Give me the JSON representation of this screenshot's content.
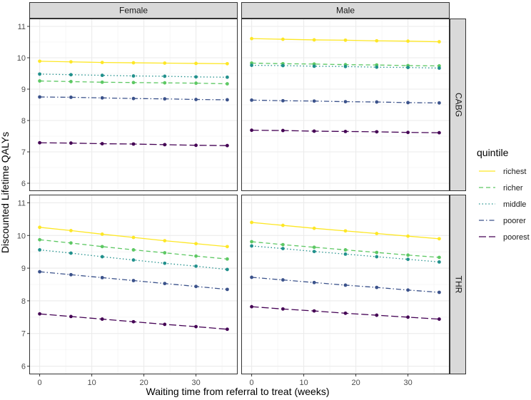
{
  "chart_data": {
    "type": "line",
    "xlabel": "Waiting time from referral to treat (weeks)",
    "ylabel": "Discounted Lifetime QALYs",
    "xlim": [
      -2,
      38
    ],
    "ylim": [
      5.75,
      11.25
    ],
    "x_ticks": [
      0,
      10,
      20,
      30
    ],
    "y_ticks": [
      6,
      7,
      8,
      9,
      10,
      11
    ],
    "x": [
      0,
      6,
      12,
      18,
      24,
      30,
      36
    ],
    "columns": [
      "Female",
      "Male"
    ],
    "rows": [
      "CABG",
      "THR"
    ],
    "grid": true,
    "legend": {
      "title": "quintile",
      "position": "right",
      "entries": [
        {
          "key": "richest",
          "label": "richest",
          "color": "#FDE725",
          "dash": ""
        },
        {
          "key": "richer",
          "label": "richer",
          "color": "#5DC863",
          "dash": "6,4"
        },
        {
          "key": "middle",
          "label": "middle",
          "color": "#21908C",
          "dash": "1.5,3"
        },
        {
          "key": "poorer",
          "label": "poorer",
          "color": "#3B528B",
          "dash": "7,3,1.5,3"
        },
        {
          "key": "poorest",
          "label": "poorest",
          "color": "#440154",
          "dash": "10,4"
        }
      ]
    },
    "panels": [
      {
        "row": "CABG",
        "col": "Female",
        "series": [
          {
            "name": "richest",
            "values": [
              9.89,
              9.87,
              9.85,
              9.84,
              9.83,
              9.82,
              9.81
            ]
          },
          {
            "name": "richer",
            "values": [
              9.26,
              9.24,
              9.22,
              9.21,
              9.2,
              9.19,
              9.17
            ]
          },
          {
            "name": "middle",
            "values": [
              9.48,
              9.46,
              9.44,
              9.42,
              9.41,
              9.39,
              9.38
            ]
          },
          {
            "name": "poorer",
            "values": [
              8.75,
              8.74,
              8.72,
              8.7,
              8.69,
              8.67,
              8.66
            ]
          },
          {
            "name": "poorest",
            "values": [
              7.29,
              7.28,
              7.26,
              7.25,
              7.23,
              7.21,
              7.2
            ]
          }
        ]
      },
      {
        "row": "CABG",
        "col": "Male",
        "series": [
          {
            "name": "richest",
            "values": [
              10.61,
              10.59,
              10.57,
              10.56,
              10.54,
              10.53,
              10.51
            ]
          },
          {
            "name": "richer",
            "values": [
              9.83,
              9.81,
              9.8,
              9.78,
              9.77,
              9.75,
              9.74
            ]
          },
          {
            "name": "middle",
            "values": [
              9.76,
              9.75,
              9.73,
              9.72,
              9.7,
              9.69,
              9.67
            ]
          },
          {
            "name": "poorer",
            "values": [
              8.65,
              8.63,
              8.62,
              8.6,
              8.59,
              8.57,
              8.56
            ]
          },
          {
            "name": "poorest",
            "values": [
              7.69,
              7.68,
              7.66,
              7.65,
              7.64,
              7.62,
              7.61
            ]
          }
        ]
      },
      {
        "row": "THR",
        "col": "Female",
        "series": [
          {
            "name": "richest",
            "values": [
              10.25,
              10.15,
              10.04,
              9.94,
              9.84,
              9.75,
              9.66
            ]
          },
          {
            "name": "richer",
            "values": [
              9.87,
              9.77,
              9.66,
              9.56,
              9.47,
              9.37,
              9.28
            ]
          },
          {
            "name": "middle",
            "values": [
              9.56,
              9.46,
              9.35,
              9.25,
              9.15,
              9.06,
              8.96
            ]
          },
          {
            "name": "poorer",
            "values": [
              8.89,
              8.8,
              8.71,
              8.62,
              8.53,
              8.44,
              8.35
            ]
          },
          {
            "name": "poorest",
            "values": [
              7.6,
              7.52,
              7.44,
              7.36,
              7.28,
              7.21,
              7.13
            ]
          }
        ]
      },
      {
        "row": "THR",
        "col": "Male",
        "series": [
          {
            "name": "richest",
            "values": [
              10.4,
              10.31,
              10.22,
              10.14,
              10.06,
              9.98,
              9.9
            ]
          },
          {
            "name": "richer",
            "values": [
              9.81,
              9.72,
              9.64,
              9.56,
              9.48,
              9.4,
              9.33
            ]
          },
          {
            "name": "middle",
            "values": [
              9.68,
              9.6,
              9.51,
              9.43,
              9.35,
              9.27,
              9.19
            ]
          },
          {
            "name": "poorer",
            "values": [
              8.72,
              8.64,
              8.56,
              8.48,
              8.41,
              8.33,
              8.26
            ]
          },
          {
            "name": "poorest",
            "values": [
              7.82,
              7.75,
              7.69,
              7.62,
              7.56,
              7.5,
              7.44
            ]
          }
        ]
      }
    ]
  }
}
